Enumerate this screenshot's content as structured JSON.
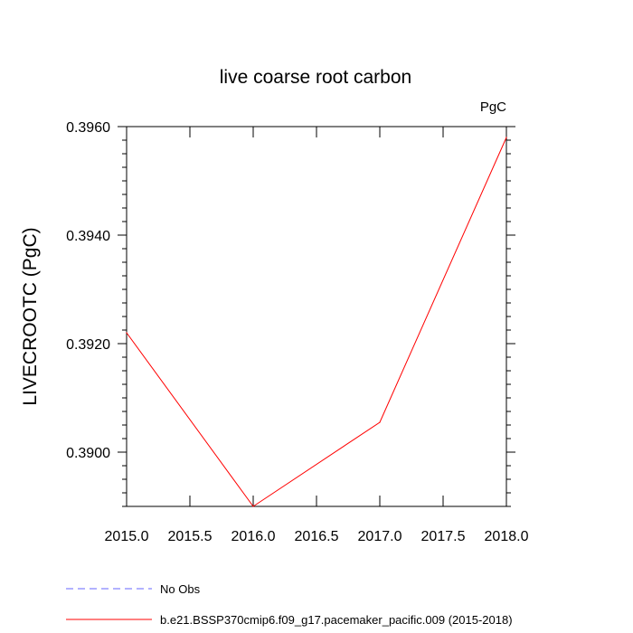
{
  "chart_data": {
    "type": "line",
    "title": "live coarse root carbon",
    "units": "PgC",
    "ylabel": "LIVECROOTC  (PgC)",
    "xlabel": "",
    "xlim": [
      2015.0,
      2018.0
    ],
    "ylim": [
      0.389,
      0.396
    ],
    "x_ticks": [
      "2015.0",
      "2015.5",
      "2016.0",
      "2016.5",
      "2017.0",
      "2017.5",
      "2018.0"
    ],
    "y_ticks": [
      "0.3900",
      "0.3920",
      "0.3940",
      "0.3960"
    ],
    "grid": false,
    "legend_position": "bottom-left",
    "series": [
      {
        "name": "No Obs",
        "color": "#6666ff",
        "dash": "dashed",
        "x": [],
        "y": []
      },
      {
        "name": "b.e21.BSSP370cmip6.f09_g17.pacemaker_pacific.009 (2015-2018)",
        "color": "#ff0000",
        "dash": "solid",
        "x": [
          2015,
          2016,
          2017,
          2018
        ],
        "y": [
          0.3922,
          0.389,
          0.39055,
          0.3958
        ]
      }
    ]
  }
}
